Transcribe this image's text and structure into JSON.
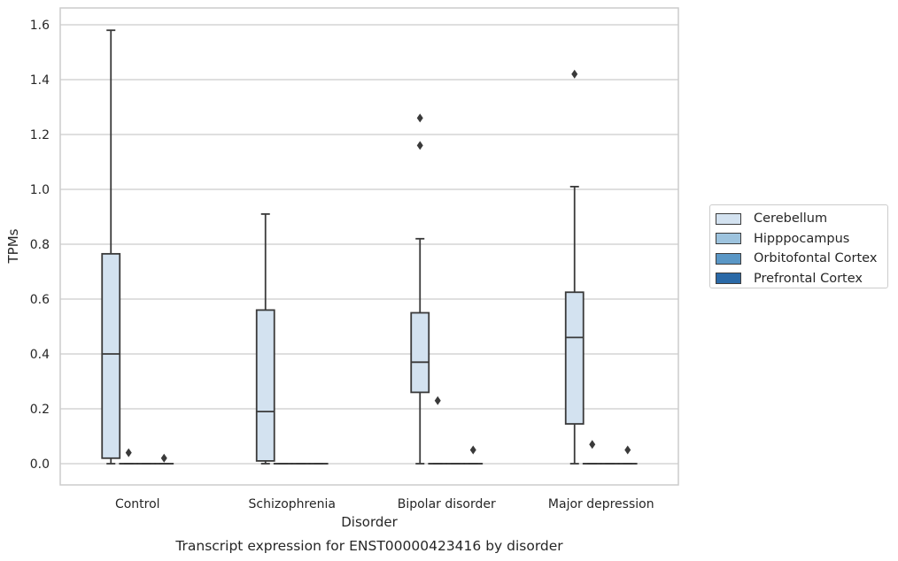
{
  "chart_data": {
    "type": "box",
    "title": "Transcript expression for ENST00000423416 by disorder",
    "xlabel": "Disorder",
    "ylabel": "TPMs",
    "categories": [
      "Control",
      "Schizophrenia",
      "Bipolar disorder",
      "Major depression"
    ],
    "ylim": [
      -0.08,
      1.66
    ],
    "yticks": [
      "0.0",
      "0.2",
      "0.4",
      "0.6",
      "0.8",
      "1.0",
      "1.2",
      "1.4",
      "1.6"
    ],
    "grid": true,
    "legend_position": "right",
    "series": [
      {
        "name": "Cerebellum",
        "color": "#d3e2f0",
        "boxes": [
          {
            "whisker_low": 0.0,
            "q1": 0.02,
            "median": 0.4,
            "q3": 0.765,
            "whisker_high": 1.58,
            "outliers": []
          },
          {
            "whisker_low": 0.0,
            "q1": 0.01,
            "median": 0.19,
            "q3": 0.56,
            "whisker_high": 0.91,
            "outliers": []
          },
          {
            "whisker_low": 0.0,
            "q1": 0.26,
            "median": 0.37,
            "q3": 0.55,
            "whisker_high": 0.82,
            "outliers": [
              1.16,
              1.26
            ]
          },
          {
            "whisker_low": 0.0,
            "q1": 0.145,
            "median": 0.46,
            "q3": 0.625,
            "whisker_high": 1.01,
            "outliers": [
              1.42
            ]
          }
        ]
      },
      {
        "name": "Hipppocampus",
        "color": "#9dc3de",
        "boxes": [
          {
            "whisker_low": 0.0,
            "q1": 0.0,
            "median": 0.0,
            "q3": 0.0,
            "whisker_high": 0.0,
            "outliers": [
              0.04
            ]
          },
          {
            "whisker_low": 0.0,
            "q1": 0.0,
            "median": 0.0,
            "q3": 0.0,
            "whisker_high": 0.0,
            "outliers": []
          },
          {
            "whisker_low": 0.0,
            "q1": 0.0,
            "median": 0.0,
            "q3": 0.0,
            "whisker_high": 0.0,
            "outliers": [
              0.23
            ]
          },
          {
            "whisker_low": 0.0,
            "q1": 0.0,
            "median": 0.0,
            "q3": 0.0,
            "whisker_high": 0.0,
            "outliers": [
              0.07
            ]
          }
        ]
      },
      {
        "name": "Orbitofontal Cortex",
        "color": "#5a97c6",
        "boxes": [
          {
            "whisker_low": 0.0,
            "q1": 0.0,
            "median": 0.0,
            "q3": 0.0,
            "whisker_high": 0.0,
            "outliers": []
          },
          {
            "whisker_low": 0.0,
            "q1": 0.0,
            "median": 0.0,
            "q3": 0.0,
            "whisker_high": 0.0,
            "outliers": []
          },
          {
            "whisker_low": 0.0,
            "q1": 0.0,
            "median": 0.0,
            "q3": 0.0,
            "whisker_high": 0.0,
            "outliers": []
          },
          {
            "whisker_low": 0.0,
            "q1": 0.0,
            "median": 0.0,
            "q3": 0.0,
            "whisker_high": 0.0,
            "outliers": []
          }
        ]
      },
      {
        "name": "Prefrontal Cortex",
        "color": "#2a69a7",
        "boxes": [
          {
            "whisker_low": 0.0,
            "q1": 0.0,
            "median": 0.0,
            "q3": 0.0,
            "whisker_high": 0.0,
            "outliers": [
              0.02
            ]
          },
          {
            "whisker_low": 0.0,
            "q1": 0.0,
            "median": 0.0,
            "q3": 0.0,
            "whisker_high": 0.0,
            "outliers": []
          },
          {
            "whisker_low": 0.0,
            "q1": 0.0,
            "median": 0.0,
            "q3": 0.0,
            "whisker_high": 0.0,
            "outliers": [
              0.05
            ]
          },
          {
            "whisker_low": 0.0,
            "q1": 0.0,
            "median": 0.0,
            "q3": 0.0,
            "whisker_high": 0.0,
            "outliers": [
              0.05
            ]
          }
        ]
      }
    ]
  },
  "legend": {
    "items": [
      {
        "label": "Cerebellum",
        "color": "#d3e2f0"
      },
      {
        "label": "Hipppocampus",
        "color": "#9dc3de"
      },
      {
        "label": "Orbitofontal Cortex",
        "color": "#5a97c6"
      },
      {
        "label": "Prefrontal Cortex",
        "color": "#2a69a7"
      }
    ]
  }
}
